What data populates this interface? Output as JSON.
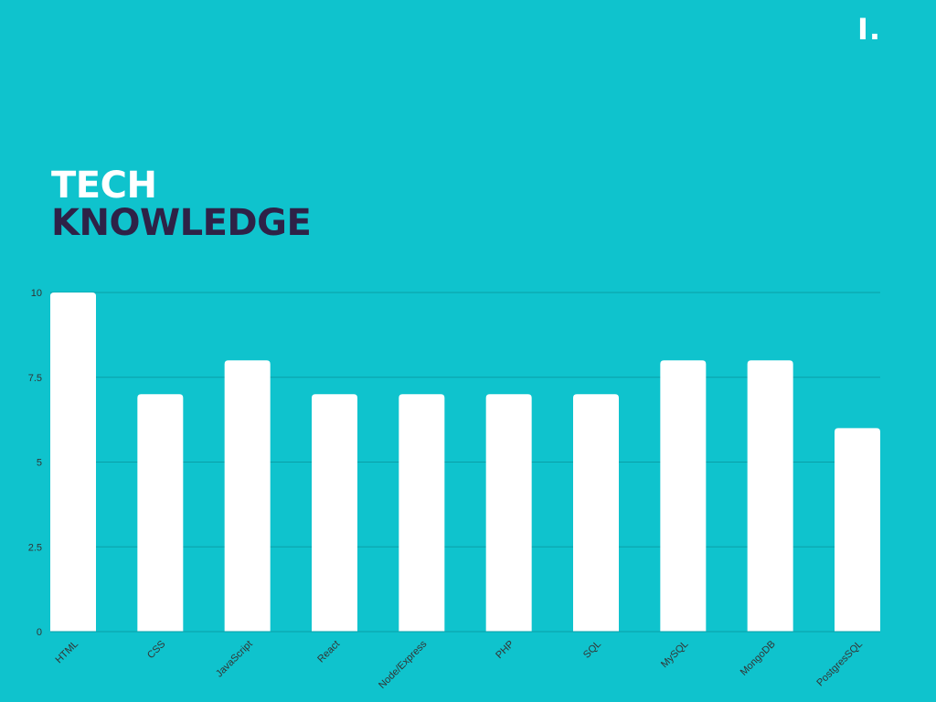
{
  "brand": {
    "logo_text": "I."
  },
  "heading": {
    "line1": "TECH",
    "line2": "KNOWLEDGE"
  },
  "colors": {
    "background": "#0fc3cd",
    "bar": "#ffffff",
    "gridline": "#0a9fa8",
    "heading_accent": "#2e2247",
    "tick_text": "#333333"
  },
  "chart_data": {
    "type": "bar",
    "categories": [
      "HTML",
      "CSS",
      "JavaScript",
      "React",
      "Node/Express",
      "PHP",
      "SQL",
      "MySQL",
      "MongoDB",
      "PostgresSQL"
    ],
    "values": [
      10,
      7,
      8,
      7,
      7,
      7,
      7,
      8,
      8,
      6
    ],
    "yticks": [
      "0",
      "2.5",
      "5",
      "7.5",
      "10"
    ],
    "ylim": [
      0,
      10
    ],
    "grid": true,
    "title": "",
    "xlabel": "",
    "ylabel": ""
  }
}
